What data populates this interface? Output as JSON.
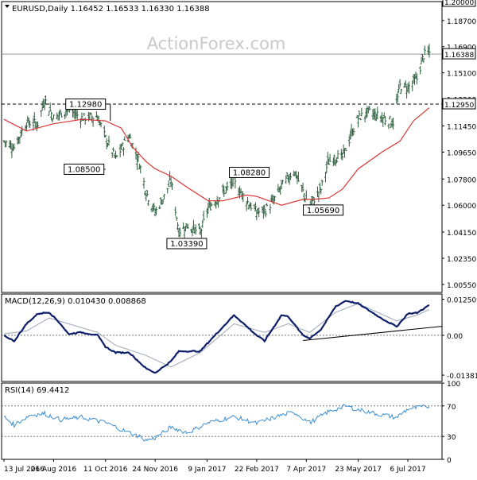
{
  "header": {
    "title": "EURUSD,Daily",
    "ohlc": "1.16452 1.16533 1.16330 1.16388",
    "watermark": "ActionForex.com"
  },
  "colors": {
    "background": "#ffffff",
    "bar": "#2e5e3e",
    "sma": "#d93434",
    "macd": "#0d1f6b",
    "signal": "#9aa6b6",
    "rsi": "#3d8fd1",
    "marker_line": "#000000",
    "label_bg": "#ffffff"
  },
  "chart_data": [
    {
      "type": "ohlc",
      "name": "price",
      "title": "EURUSD,Daily",
      "ylim": [
        1.0,
        1.2
      ],
      "y_ticks": [
        "1.20000",
        "1.18700",
        "1.16900",
        "1.15100",
        "1.13300",
        "1.11450",
        "1.09650",
        "1.07800",
        "1.06000",
        "1.04150",
        "1.02350",
        "1.00550"
      ],
      "x_ticks": [
        "13 Jul 2016",
        "26 Aug 2016",
        "11 Oct 2016",
        "24 Nov 2016",
        "9 Jan 2017",
        "22 Feb 2017",
        "7 Apr 2017",
        "23 May 2017",
        "6 Jul 2017"
      ],
      "x_tick_dates": [
        "2016-07-13",
        "2016-08-26",
        "2016-10-11",
        "2016-11-24",
        "2017-01-09",
        "2017-02-22",
        "2017-04-07",
        "2017-05-23",
        "2017-07-06"
      ],
      "current_value": "1.16388",
      "hlines": [
        {
          "label": "1.20000",
          "value": 1.2
        },
        {
          "label": "1.12950",
          "value": 1.1295
        }
      ],
      "annotations": [
        {
          "label": "1.12980",
          "date": "2016-10-11",
          "value": 1.1298
        },
        {
          "label": "1.08500",
          "date": "2016-10-11",
          "value": 1.085
        },
        {
          "label": "1.03390",
          "date": "2017-01-03",
          "value": 1.0339
        },
        {
          "label": "1.08280",
          "date": "2017-02-02",
          "value": 1.0828
        },
        {
          "label": "1.05690",
          "date": "2017-04-10",
          "value": 1.0569
        }
      ],
      "anchors": [
        [
          "2016-07-13",
          1.104
        ],
        [
          "2016-07-22",
          1.1
        ],
        [
          "2016-08-02",
          1.117
        ],
        [
          "2016-08-12",
          1.116
        ],
        [
          "2016-08-18",
          1.133
        ],
        [
          "2016-08-26",
          1.12
        ],
        [
          "2016-09-08",
          1.126
        ],
        [
          "2016-09-20",
          1.12
        ],
        [
          "2016-10-04",
          1.121
        ],
        [
          "2016-10-11",
          1.106
        ],
        [
          "2016-10-20",
          1.092
        ],
        [
          "2016-11-01",
          1.108
        ],
        [
          "2016-11-10",
          1.089
        ],
        [
          "2016-11-16",
          1.069
        ],
        [
          "2016-11-24",
          1.055
        ],
        [
          "2016-12-02",
          1.066
        ],
        [
          "2016-12-08",
          1.077
        ],
        [
          "2016-12-15",
          1.042
        ],
        [
          "2016-12-23",
          1.046
        ],
        [
          "2017-01-03",
          1.041
        ],
        [
          "2017-01-10",
          1.058
        ],
        [
          "2017-01-20",
          1.066
        ],
        [
          "2017-02-02",
          1.076
        ],
        [
          "2017-02-13",
          1.063
        ],
        [
          "2017-02-22",
          1.055
        ],
        [
          "2017-03-01",
          1.056
        ],
        [
          "2017-03-09",
          1.063
        ],
        [
          "2017-03-16",
          1.073
        ],
        [
          "2017-03-27",
          1.084
        ],
        [
          "2017-04-07",
          1.064
        ],
        [
          "2017-04-10",
          1.06
        ],
        [
          "2017-04-20",
          1.071
        ],
        [
          "2017-04-26",
          1.089
        ],
        [
          "2017-05-02",
          1.093
        ],
        [
          "2017-05-09",
          1.093
        ],
        [
          "2017-05-17",
          1.109
        ],
        [
          "2017-05-23",
          1.12
        ],
        [
          "2017-06-01",
          1.124
        ],
        [
          "2017-06-14",
          1.12
        ],
        [
          "2017-06-23",
          1.117
        ],
        [
          "2017-06-29",
          1.142
        ],
        [
          "2017-07-06",
          1.141
        ],
        [
          "2017-07-14",
          1.147
        ],
        [
          "2017-07-20",
          1.163
        ],
        [
          "2017-07-25",
          1.165
        ]
      ],
      "sma": [
        [
          "2016-07-13",
          1.119
        ],
        [
          "2016-08-02",
          1.111
        ],
        [
          "2016-08-26",
          1.116
        ],
        [
          "2016-09-20",
          1.119
        ],
        [
          "2016-10-11",
          1.118
        ],
        [
          "2016-10-25",
          1.113
        ],
        [
          "2016-11-04",
          1.1
        ],
        [
          "2016-11-16",
          1.09
        ],
        [
          "2016-11-24",
          1.085
        ],
        [
          "2016-12-08",
          1.08
        ],
        [
          "2016-12-23",
          1.072
        ],
        [
          "2017-01-10",
          1.063
        ],
        [
          "2017-01-23",
          1.063
        ],
        [
          "2017-02-13",
          1.067
        ],
        [
          "2017-02-22",
          1.066
        ],
        [
          "2017-03-16",
          1.06
        ],
        [
          "2017-04-04",
          1.064
        ],
        [
          "2017-04-13",
          1.064
        ],
        [
          "2017-04-27",
          1.065
        ],
        [
          "2017-05-09",
          1.071
        ],
        [
          "2017-05-23",
          1.085
        ],
        [
          "2017-06-14",
          1.097
        ],
        [
          "2017-06-29",
          1.104
        ],
        [
          "2017-07-11",
          1.118
        ],
        [
          "2017-07-25",
          1.127
        ]
      ]
    },
    {
      "type": "line",
      "name": "macd",
      "title": "MACD(12,26,9) 0.010430 0.008868",
      "ylim": [
        -0.016,
        0.0143
      ],
      "y_ticks": [
        "0.012509",
        "0.00",
        "-0.013813"
      ],
      "macd": [
        [
          "2016-07-13",
          0.0
        ],
        [
          "2016-07-22",
          -0.002
        ],
        [
          "2016-08-02",
          0.004
        ],
        [
          "2016-08-12",
          0.0075
        ],
        [
          "2016-08-22",
          0.008
        ],
        [
          "2016-09-01",
          0.004
        ],
        [
          "2016-09-08",
          0.0005
        ],
        [
          "2016-09-20",
          0.001
        ],
        [
          "2016-10-04",
          0.0
        ],
        [
          "2016-10-11",
          -0.004
        ],
        [
          "2016-10-20",
          -0.006
        ],
        [
          "2016-11-01",
          -0.006
        ],
        [
          "2016-11-16",
          -0.0115
        ],
        [
          "2016-11-24",
          -0.013
        ],
        [
          "2016-12-08",
          -0.009
        ],
        [
          "2016-12-15",
          -0.0055
        ],
        [
          "2017-01-03",
          -0.0055
        ],
        [
          "2017-01-16",
          0.0
        ],
        [
          "2017-02-02",
          0.007
        ],
        [
          "2017-02-22",
          0.0
        ],
        [
          "2017-03-01",
          -0.002
        ],
        [
          "2017-03-16",
          0.007
        ],
        [
          "2017-03-22",
          0.0065
        ],
        [
          "2017-04-04",
          0.0
        ],
        [
          "2017-04-10",
          -0.001
        ],
        [
          "2017-04-20",
          0.002
        ],
        [
          "2017-05-03",
          0.01
        ],
        [
          "2017-05-12",
          0.012
        ],
        [
          "2017-05-23",
          0.011
        ],
        [
          "2017-06-12",
          0.006
        ],
        [
          "2017-06-26",
          0.003
        ],
        [
          "2017-07-06",
          0.0075
        ],
        [
          "2017-07-14",
          0.0078
        ],
        [
          "2017-07-25",
          0.0104
        ]
      ],
      "signal": [
        [
          "2016-07-13",
          0.0005
        ],
        [
          "2016-08-02",
          0.0015
        ],
        [
          "2016-08-22",
          0.006
        ],
        [
          "2016-09-08",
          0.004
        ],
        [
          "2016-10-04",
          0.001
        ],
        [
          "2016-10-20",
          -0.0035
        ],
        [
          "2016-11-16",
          -0.007
        ],
        [
          "2016-12-08",
          -0.011
        ],
        [
          "2017-01-03",
          -0.006
        ],
        [
          "2017-02-02",
          0.004
        ],
        [
          "2017-03-01",
          0.001
        ],
        [
          "2017-03-22",
          0.004
        ],
        [
          "2017-04-10",
          0.001
        ],
        [
          "2017-05-03",
          0.008
        ],
        [
          "2017-05-23",
          0.011
        ],
        [
          "2017-06-26",
          0.005
        ],
        [
          "2017-07-14",
          0.007
        ],
        [
          "2017-07-25",
          0.0089
        ]
      ],
      "trendline": [
        [
          "2017-04-04",
          -0.0018
        ],
        [
          "2017-07-25",
          0.0031
        ]
      ]
    },
    {
      "type": "line",
      "name": "rsi",
      "title": "RSI(14) 69.4412",
      "ylim": [
        0,
        100
      ],
      "y_ticks": [
        "100",
        "70",
        "30",
        "0"
      ],
      "levels": [
        70,
        30
      ],
      "anchors": [
        [
          "2016-07-13",
          56
        ],
        [
          "2016-07-22",
          45
        ],
        [
          "2016-08-05",
          58
        ],
        [
          "2016-08-18",
          60
        ],
        [
          "2016-09-01",
          52
        ],
        [
          "2016-09-20",
          55
        ],
        [
          "2016-10-11",
          48
        ],
        [
          "2016-10-27",
          38
        ],
        [
          "2016-11-10",
          30
        ],
        [
          "2016-11-16",
          25
        ],
        [
          "2016-11-24",
          28
        ],
        [
          "2016-12-08",
          42
        ],
        [
          "2016-12-23",
          35
        ],
        [
          "2017-01-10",
          48
        ],
        [
          "2017-02-02",
          56
        ],
        [
          "2017-02-22",
          47
        ],
        [
          "2017-03-16",
          58
        ],
        [
          "2017-03-27",
          62
        ],
        [
          "2017-04-10",
          48
        ],
        [
          "2017-04-26",
          62
        ],
        [
          "2017-05-12",
          70
        ],
        [
          "2017-05-23",
          65
        ],
        [
          "2017-06-14",
          58
        ],
        [
          "2017-06-26",
          55
        ],
        [
          "2017-07-06",
          66
        ],
        [
          "2017-07-25",
          69.4412
        ]
      ]
    }
  ]
}
